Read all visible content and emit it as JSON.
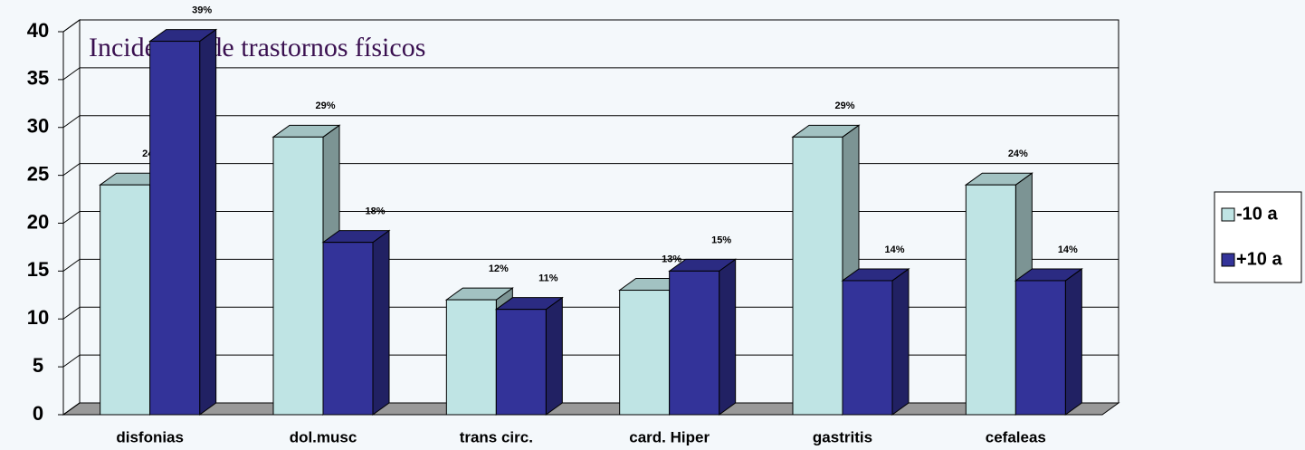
{
  "chart_data": {
    "type": "bar3d",
    "title": "Incidencia de trastornos físicos",
    "categories": [
      "disfonias",
      "dol.musc",
      "trans circ.",
      "card. Hiper",
      "gastritis",
      "cefaleas"
    ],
    "series": [
      {
        "name": "-10 a",
        "color": "#bfe4e4",
        "values": [
          24,
          29,
          12,
          13,
          29,
          24
        ],
        "value_labels": [
          "24%",
          "29%",
          "12%",
          "13%",
          "29%",
          "24%"
        ]
      },
      {
        "name": "+10 a",
        "color": "#333399",
        "values": [
          39,
          18,
          11,
          15,
          14,
          14
        ],
        "value_labels": [
          "39%",
          "18%",
          "11%",
          "15%",
          "14%",
          "14%"
        ]
      }
    ],
    "ylim": [
      0,
      40
    ],
    "yticks": [
      0,
      5,
      10,
      15,
      20,
      25,
      30,
      35,
      40
    ],
    "grid": true,
    "legend": "right"
  }
}
